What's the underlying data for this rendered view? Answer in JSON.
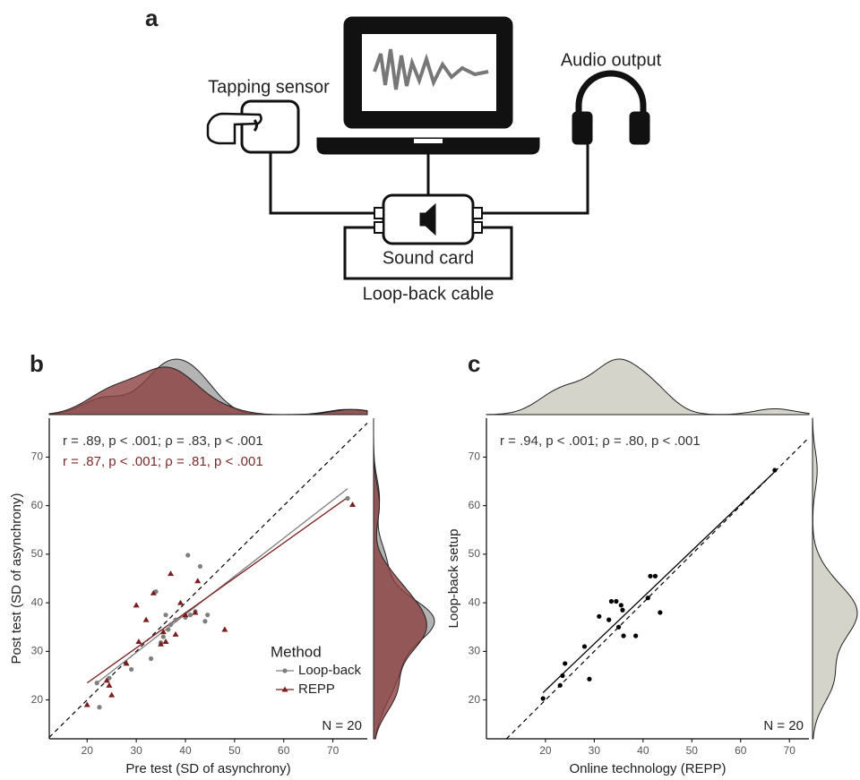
{
  "diagram": {
    "panel_label": "a",
    "tapping_sensor": "Tapping sensor",
    "audio_output": "Audio output",
    "sound_card": "Sound card",
    "loop_back_cable": "Loop-back cable"
  },
  "chart_data": [
    {
      "type": "scatter",
      "panel_label": "b",
      "xlabel": "Pre test (SD of asynchrony)",
      "ylabel": "Post test (SD of asynchrony)",
      "xlim": [
        12.3,
        77
      ],
      "ylim": [
        12,
        78
      ],
      "xticks": [
        20,
        30,
        40,
        50,
        60,
        70
      ],
      "yticks": [
        20,
        30,
        40,
        50,
        60,
        70
      ],
      "identity_line": true,
      "marginal_density": true,
      "annotations": [
        {
          "text": "r = .89, p < .001; ρ = .83, p < .001",
          "color": "#333333"
        },
        {
          "text": "r = .87, p < .001; ρ = .81, p < .001",
          "color": "#7a2a2a"
        }
      ],
      "legend_title": "Method",
      "legend_position": "bottom-right",
      "n_label": "N = 20",
      "series": [
        {
          "name": "Loop-back",
          "color": "#7f7f7f",
          "fill": "#a0a0a0",
          "marker": "circle",
          "x": [
            22,
            22.5,
            24.5,
            29,
            33,
            34,
            35,
            36,
            37,
            38,
            40,
            40.5,
            41,
            42,
            43,
            44,
            44.5,
            36.5,
            35.5,
            73
          ],
          "values": [
            23.5,
            18.5,
            24.5,
            26.3,
            28.5,
            42.3,
            31.8,
            37.5,
            35.5,
            36.5,
            37,
            49.8,
            37.5,
            38.2,
            47.5,
            36.2,
            37.5,
            34.5,
            33,
            61.5
          ]
        },
        {
          "name": "REPP",
          "color": "#7a1f1f",
          "fill": "#8c4040",
          "marker": "triangle",
          "x": [
            20,
            24,
            24.5,
            25,
            28,
            30,
            30.5,
            32,
            33.5,
            35,
            36,
            37,
            38,
            39,
            40,
            42,
            42.5,
            48,
            74,
            35.5
          ],
          "values": [
            19,
            24,
            23,
            21,
            27.5,
            39.5,
            32,
            36.5,
            42,
            31.5,
            32,
            46,
            33.5,
            40,
            37.5,
            38,
            44.5,
            34.5,
            60.2,
            34
          ]
        }
      ],
      "fits": [
        {
          "color": "#7f7f7f",
          "x": [
            22,
            73
          ],
          "values": [
            23.5,
            63.5
          ]
        },
        {
          "color": "#7a1f1f",
          "x": [
            20,
            73
          ],
          "values": [
            23.5,
            61.7
          ]
        }
      ]
    },
    {
      "type": "scatter",
      "panel_label": "c",
      "xlabel": "Online technology (REPP)",
      "ylabel": "Loop-back setup",
      "xlim": [
        7.9,
        74
      ],
      "ylim": [
        12,
        78
      ],
      "xticks": [
        20,
        30,
        40,
        50,
        60,
        70
      ],
      "yticks": [
        20,
        30,
        40,
        50,
        60,
        70
      ],
      "identity_line": true,
      "marginal_density": true,
      "annotations": [
        {
          "text": "r = .94, p < .001; ρ = .80, p < .001",
          "color": "#333333"
        }
      ],
      "n_label": "N = 20",
      "series": [
        {
          "color": "#000000",
          "fill": "#c9c9bd",
          "marker": "circle",
          "x": [
            19.5,
            23,
            23.5,
            24,
            28,
            29,
            31,
            33,
            33.5,
            34.5,
            35,
            35.5,
            35.8,
            36,
            38.5,
            41,
            41.5,
            42.5,
            43.5,
            67
          ],
          "values": [
            20.3,
            23,
            25,
            27.5,
            31,
            24.3,
            37.2,
            36.5,
            40.3,
            40.3,
            35,
            39.5,
            38.5,
            33.2,
            33.2,
            41,
            45.5,
            45.5,
            38,
            67.3
          ]
        }
      ],
      "fits": [
        {
          "color": "#000000",
          "x": [
            19.5,
            67
          ],
          "values": [
            21.5,
            67
          ]
        }
      ]
    }
  ]
}
